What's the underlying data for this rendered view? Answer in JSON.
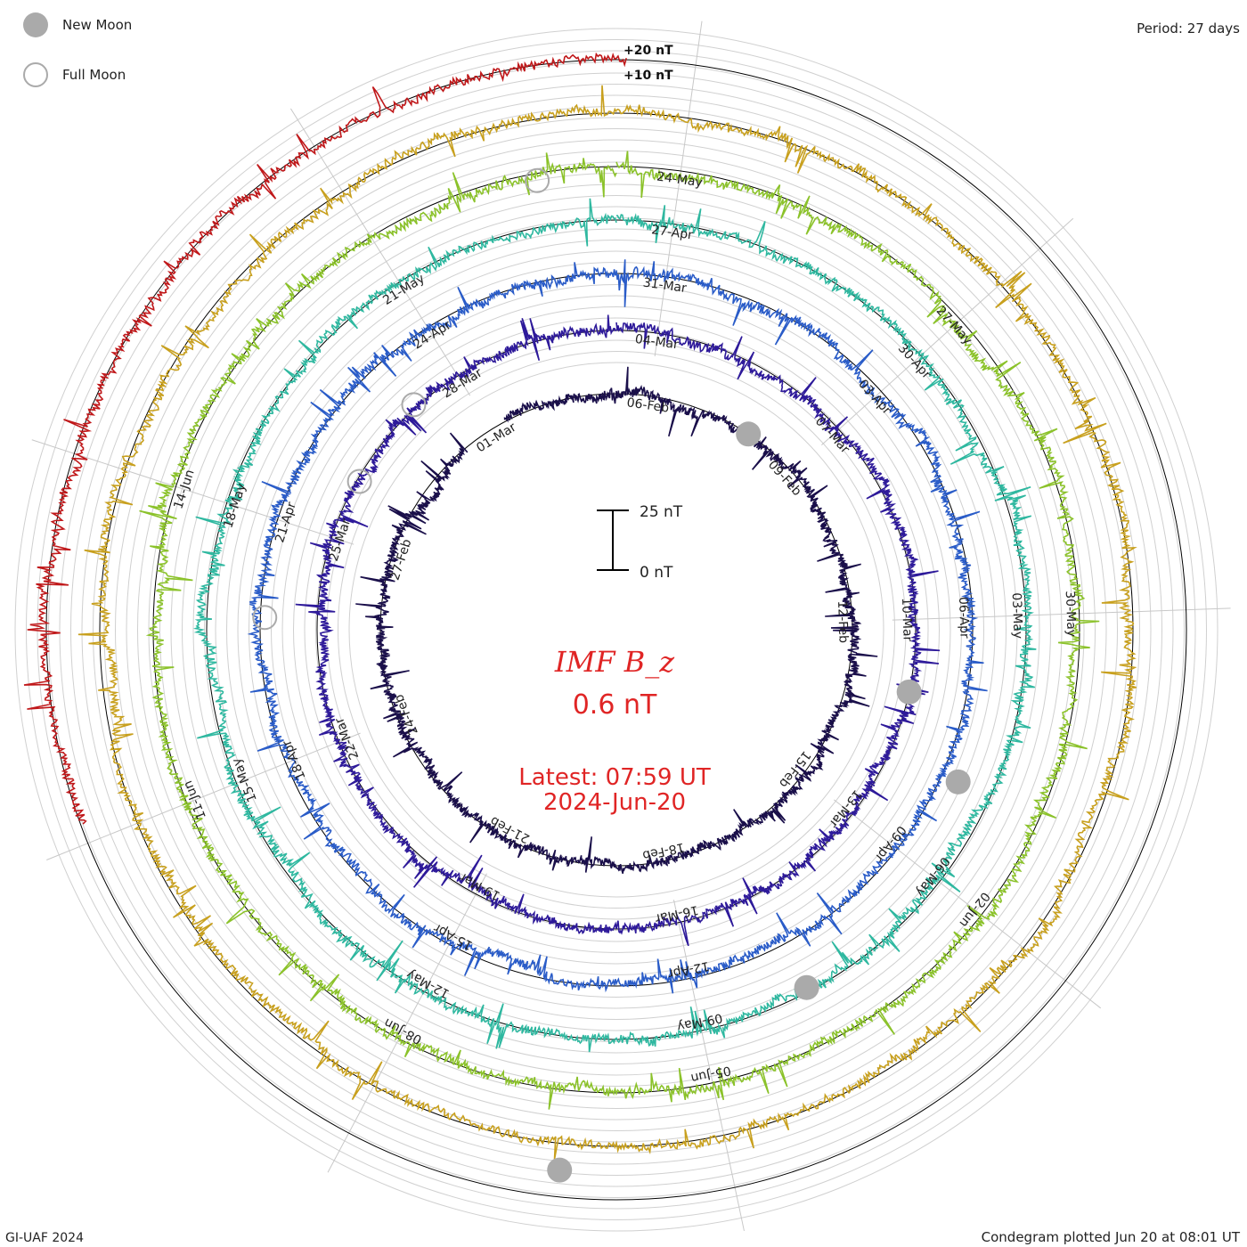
{
  "chart_data": {
    "type": "line",
    "subtype": "polar-condegram",
    "title": "IMF B_z",
    "value_label": "0.6 nT",
    "latest_label": "Latest: 07:59 UT",
    "latest_date": "2024-Jun-20",
    "period_label": "Period: 27 days",
    "credit": "GI-UAF 2024",
    "plotted_label": "Condegram plotted Jun 20 at 08:01 UT",
    "scale_ticks": [
      "+20 nT",
      "+10 nT"
    ],
    "scale_bar": {
      "top": "25 nT",
      "bottom": "0 nT"
    },
    "legend": [
      {
        "name": "New Moon",
        "symbol": "filled"
      },
      {
        "name": "Full Moon",
        "symbol": "hollow"
      }
    ],
    "series": [
      {
        "name": "rotation-1",
        "color": "#1a0f4a",
        "start": "2024-Jan-27",
        "dates": [
          "06-Feb",
          "09-Feb",
          "12-Feb",
          "15-Feb",
          "18-Feb",
          "21-Feb",
          "24-Feb",
          "27-Feb",
          "01-Mar"
        ]
      },
      {
        "name": "rotation-2",
        "color": "#2e1a9a",
        "start": "2024-Feb-23",
        "dates": [
          "04-Mar",
          "07-Mar",
          "10-Mar",
          "13-Mar",
          "16-Mar",
          "19-Mar",
          "22-Mar",
          "25-Mar",
          "28-Mar"
        ]
      },
      {
        "name": "rotation-3",
        "color": "#2a5cc8",
        "start": "2024-Mar-21",
        "dates": [
          "31-Mar",
          "03-Apr",
          "06-Apr",
          "09-Apr",
          "12-Apr",
          "15-Apr",
          "18-Apr",
          "21-Apr",
          "24-Apr"
        ]
      },
      {
        "name": "rotation-4",
        "color": "#2fb8a0",
        "start": "2024-Apr-17",
        "dates": [
          "27-Apr",
          "30-Apr",
          "03-May",
          "06-May",
          "09-May",
          "12-May",
          "15-May",
          "18-May",
          "21-May"
        ]
      },
      {
        "name": "rotation-5",
        "color": "#8bc22a",
        "start": "2024-May-14",
        "dates": [
          "24-May",
          "27-May",
          "30-May",
          "02-Jun",
          "05-Jun",
          "08-Jun",
          "11-Jun",
          "14-Jun"
        ]
      },
      {
        "name": "rotation-6",
        "color": "#c8a01e",
        "start": "2024-Jun-10",
        "dates": []
      },
      {
        "name": "rotation-7",
        "color": "#c0181a",
        "start": "2024-Jun-10",
        "dates": []
      }
    ],
    "new_moons": [
      "2024-Feb-09",
      "2024-Mar-10",
      "2024-Apr-08",
      "2024-May-08",
      "2024-Jun-06"
    ],
    "full_moons": [
      "2024-Feb-24",
      "2024-Mar-25",
      "2024-Apr-23",
      "2024-May-23"
    ]
  }
}
